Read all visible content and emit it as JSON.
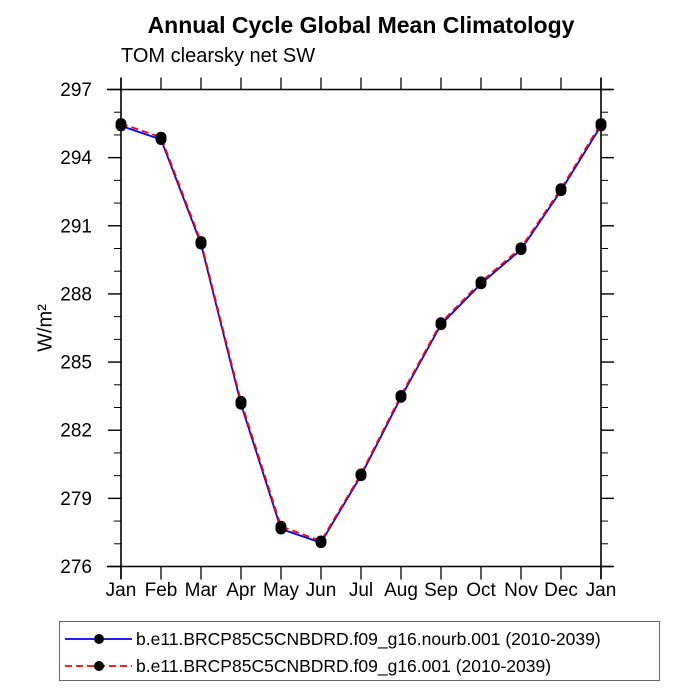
{
  "chart_data": {
    "type": "line",
    "title": "Annual Cycle Global Mean Climatology",
    "subtitle": "TOM clearsky net SW",
    "ylabel": "W/m²",
    "xlabel": "",
    "ylim": [
      276,
      297
    ],
    "ytick_major": 3,
    "ytick_minor": 1,
    "yticks": [
      297,
      294,
      291,
      288,
      285,
      282,
      279,
      276
    ],
    "categories": [
      "Jan",
      "Feb",
      "Mar",
      "Apr",
      "May",
      "Jun",
      "Jul",
      "Aug",
      "Sep",
      "Oct",
      "Nov",
      "Dec",
      "Jan"
    ],
    "series": [
      {
        "name": "b.e11.BRCP85C5CNBDRD.f09_g16.nourb.001 (2010-2039)",
        "color": "#0000ff",
        "style": "solid",
        "values": [
          295.4,
          294.8,
          290.2,
          283.15,
          277.65,
          277.05,
          280.0,
          283.45,
          286.65,
          288.45,
          289.95,
          292.55,
          295.4
        ]
      },
      {
        "name": "b.e11.BRCP85C5CNBDRD.f09_g16.001 (2010-2039)",
        "color": "#ff0000",
        "style": "dashed",
        "values": [
          295.5,
          294.9,
          290.3,
          283.27,
          277.77,
          277.12,
          280.07,
          283.53,
          286.73,
          288.53,
          290.03,
          292.63,
          295.5
        ]
      }
    ],
    "marker": {
      "shape": "filled-circle",
      "color": "#000000",
      "radius": 5.5
    },
    "axis_color": "#000000",
    "grid": false,
    "legend_position": "bottom-left"
  }
}
